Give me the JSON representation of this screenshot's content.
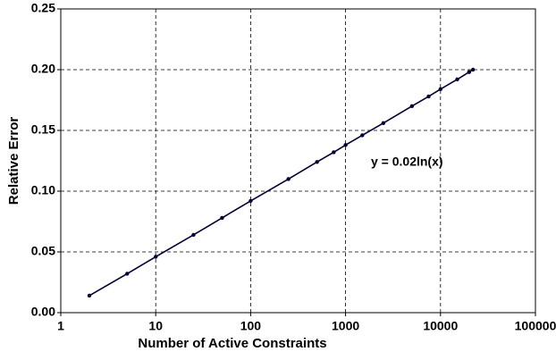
{
  "chart_data": {
    "type": "line",
    "x_label": "Number of Active Constraints",
    "y_label": "Relative Error",
    "annotation": "y = 0.02ln(x)",
    "x_scale": "log",
    "grid": true,
    "xlim": [
      1,
      100000
    ],
    "xticks": [
      1,
      10,
      100,
      1000,
      10000,
      100000
    ],
    "ylim": [
      0,
      0.25
    ],
    "yticks": [
      {
        "value": 0,
        "label": "0.00"
      },
      {
        "value": 0.05,
        "label": "0.05"
      },
      {
        "value": 0.1,
        "label": "0.10"
      },
      {
        "value": 0.15,
        "label": "0.15"
      },
      {
        "value": 0.2,
        "label": "0.20"
      },
      {
        "value": 0.25,
        "label": "0.25"
      }
    ],
    "x": [
      2,
      5,
      10,
      25,
      50,
      100,
      250,
      500,
      750,
      1000,
      1500,
      2500,
      5000,
      7500,
      10000,
      15000,
      20000,
      22000
    ],
    "series": [
      {
        "color": "#000033",
        "values": [
          0.014,
          0.032,
          0.046,
          0.064,
          0.078,
          0.092,
          0.11,
          0.124,
          0.132,
          0.138,
          0.146,
          0.156,
          0.17,
          0.178,
          0.184,
          0.192,
          0.198,
          0.2
        ]
      }
    ]
  }
}
